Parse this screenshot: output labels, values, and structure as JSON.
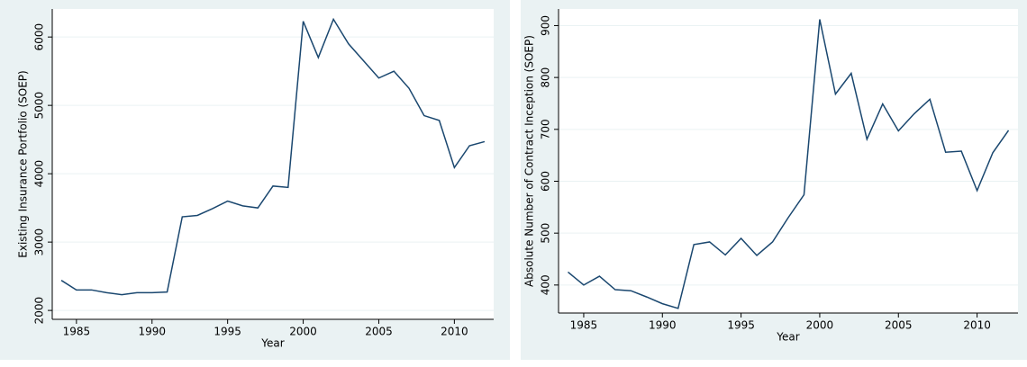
{
  "chart_data": [
    {
      "type": "line",
      "x_label": "Year",
      "y_label": "Existing Insurance Portfolio (SOEP)",
      "x": [
        1984,
        1985,
        1986,
        1987,
        1988,
        1989,
        1990,
        1991,
        1992,
        1993,
        1994,
        1995,
        1996,
        1997,
        1998,
        1999,
        2000,
        2001,
        2002,
        2003,
        2004,
        2005,
        2006,
        2007,
        2008,
        2009,
        2010,
        2011,
        2012
      ],
      "values": [
        2440,
        2300,
        2300,
        2260,
        2230,
        2260,
        2260,
        2270,
        3370,
        3390,
        3490,
        3600,
        3530,
        3500,
        3820,
        3800,
        6230,
        5700,
        6260,
        5900,
        5650,
        5400,
        5500,
        5250,
        4850,
        4780,
        4090,
        4410,
        4470
      ],
      "color": "#1a476f",
      "xlim": [
        1983.4,
        2012.6
      ],
      "ylim": [
        1870,
        6410
      ],
      "xticks": [
        1985,
        1990,
        1995,
        2000,
        2005,
        2010
      ],
      "yticks": [
        2000,
        3000,
        4000,
        5000,
        6000
      ],
      "grid": true
    },
    {
      "type": "line",
      "x_label": "Year",
      "y_label": "Absolute Number of Contract Inception (SOEP)",
      "x": [
        1984,
        1985,
        1986,
        1987,
        1988,
        1989,
        1990,
        1991,
        1992,
        1993,
        1994,
        1995,
        1996,
        1997,
        1998,
        1999,
        2000,
        2001,
        2002,
        2003,
        2004,
        2005,
        2006,
        2007,
        2008,
        2009,
        2010,
        2011,
        2012
      ],
      "values": [
        425,
        400,
        417,
        391,
        389,
        377,
        364,
        355,
        478,
        483,
        458,
        490,
        457,
        483,
        530,
        574,
        912,
        768,
        808,
        681,
        749,
        697,
        730,
        758,
        656,
        658,
        582,
        655,
        698
      ],
      "color": "#1a476f",
      "xlim": [
        1983.4,
        2012.6
      ],
      "ylim": [
        346,
        932
      ],
      "xticks": [
        1985,
        1990,
        1995,
        2000,
        2005,
        2010
      ],
      "yticks": [
        400,
        500,
        600,
        700,
        800,
        900
      ],
      "grid": true
    }
  ]
}
